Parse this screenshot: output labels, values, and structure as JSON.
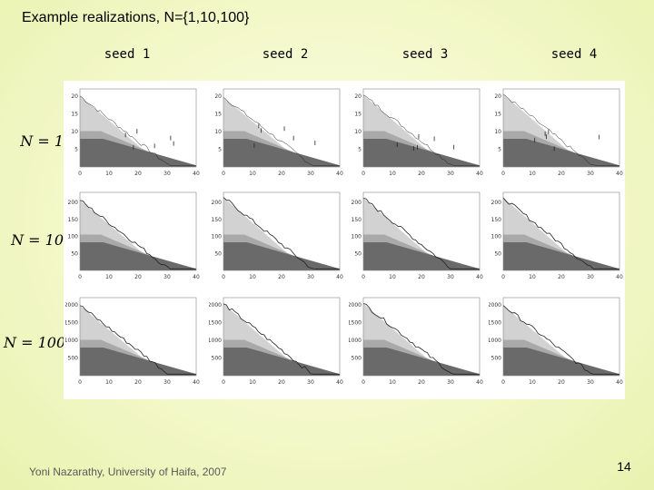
{
  "slide": {
    "title": "Example realizations, N={1,10,100}",
    "footer": "Yoni Nazarathy, University of Haifa, 2007",
    "page_number": "14"
  },
  "seeds": [
    "seed 1",
    "seed 2",
    "seed 3",
    "seed 4"
  ],
  "rows": [
    {
      "label": "N = 1",
      "y_ticks": [
        "5",
        "10",
        "15",
        "20"
      ],
      "x_ticks": [
        "0",
        "10",
        "20",
        "30",
        "40"
      ],
      "ymax": 22
    },
    {
      "label": "N = 10",
      "y_ticks": [
        "50",
        "100",
        "150",
        "200"
      ],
      "x_ticks": [
        "0",
        "10",
        "20",
        "30",
        "40"
      ],
      "ymax": 230
    },
    {
      "label": "N = 100",
      "y_ticks": [
        "500",
        "1000",
        "1500",
        "2000"
      ],
      "x_ticks": [
        "0",
        "10",
        "20",
        "30",
        "40"
      ],
      "ymax": 2200
    }
  ],
  "colors": {
    "light_region": "#d2d2d2",
    "mid_region": "#a9a9a9",
    "dark_region": "#6a6a6a",
    "trace": "#222222"
  }
}
